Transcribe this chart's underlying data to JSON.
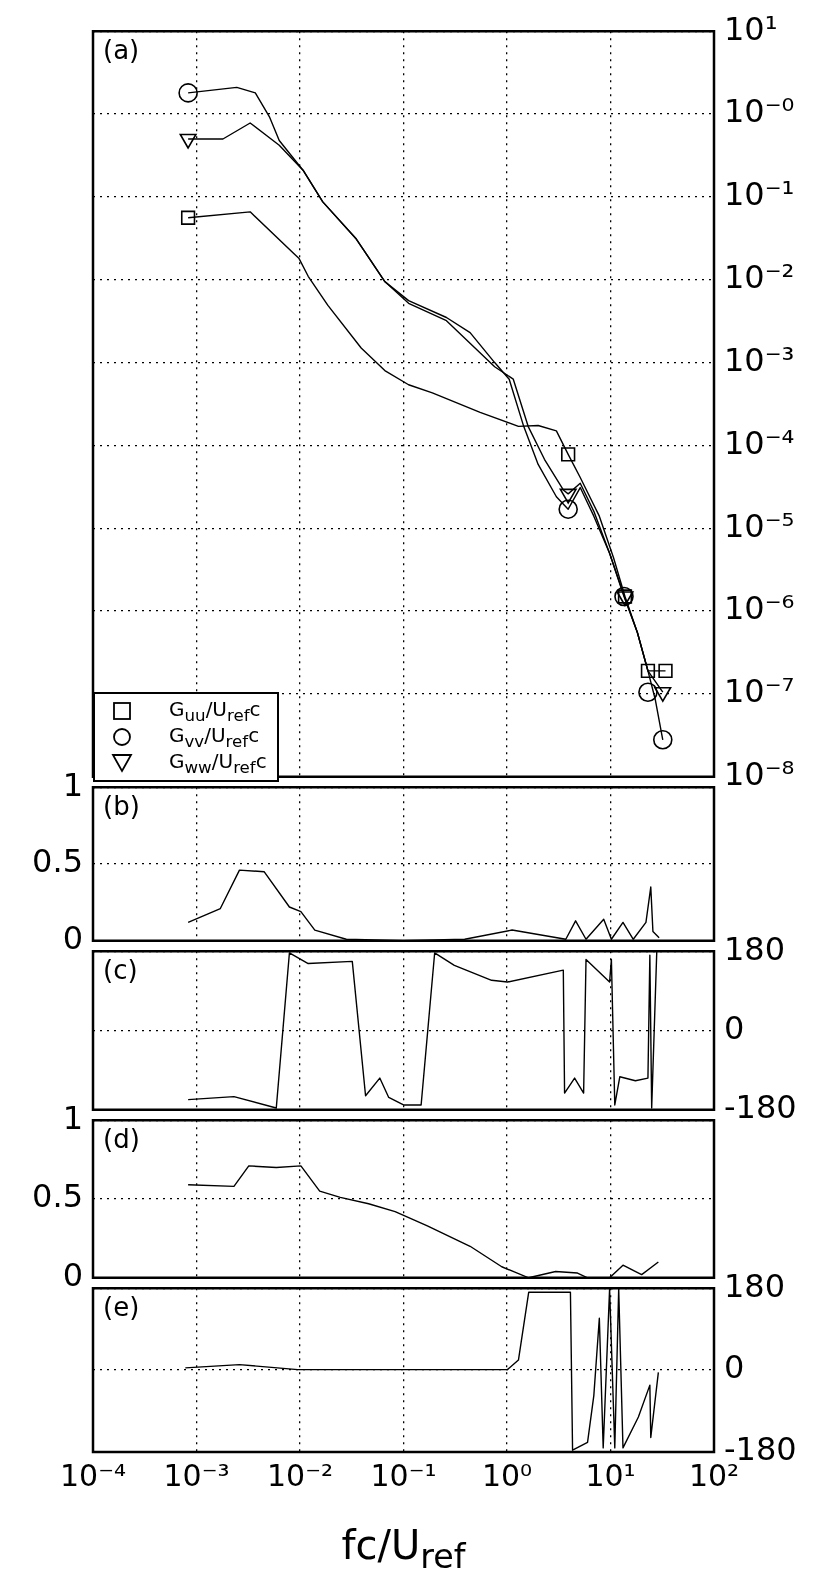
{
  "chart_data": [
    {
      "type": "line",
      "title": "(a)",
      "log": "xy",
      "grid": true,
      "legend": "bottom left",
      "tick_labels": "y",
      "xlim": [
        0.0001,
        100
      ],
      "xticks": [
        {
          "value": 0.0001,
          "label": null
        },
        {
          "value": 0.001,
          "label": null
        },
        {
          "value": 0.01,
          "label": null
        },
        {
          "value": 0.1,
          "label": null
        },
        {
          "value": 1,
          "label": null
        },
        {
          "value": 10,
          "label": null
        },
        {
          "value": 100,
          "label": null
        }
      ],
      "ylim": [
        1e-08,
        10
      ],
      "yticks": [
        {
          "value": 10,
          "label": "10¹"
        },
        {
          "value": 1,
          "label": "10⁻⁰"
        },
        {
          "value": 0.1,
          "label": "10⁻¹"
        },
        {
          "value": 0.01,
          "label": "10⁻²"
        },
        {
          "value": 0.001,
          "label": "10⁻³"
        },
        {
          "value": 0.0001,
          "label": "10⁻⁴"
        },
        {
          "value": 1e-05,
          "label": "10⁻⁵"
        },
        {
          "value": 1e-06,
          "label": "10⁻⁶"
        },
        {
          "value": 1e-07,
          "label": "10⁻⁷"
        },
        {
          "value": 1e-08,
          "label": "10⁻⁸"
        }
      ],
      "series": [
        {
          "color": "#000000",
          "x": [
            0.00083,
            0.0033,
            0.0098,
            0.012,
            0.0186,
            0.039,
            0.066,
            0.112,
            0.19,
            0.55,
            1.29,
            2.0,
            3.0,
            3.9,
            5.1,
            7.8,
            10.7,
            13.8,
            18.2,
            23,
            34
          ],
          "values": [
            0.056,
            0.066,
            0.018,
            0.011,
            0.0049,
            0.0015,
            0.0008,
            0.00054,
            0.00043,
            0.00025,
            0.00017,
            0.000174,
            0.00015,
            7.8e-05,
            4.1e-05,
            1.4e-05,
            4.4e-06,
            1.5e-06,
            5.5e-07,
            1.9e-07,
            1.9e-07
          ]
        },
        {
          "color": "#000000",
          "x": [
            0.00083,
            0.00245,
            0.0037,
            0.0051,
            0.0063,
            0.0107,
            0.0166,
            0.035,
            0.066,
            0.112,
            0.26,
            0.44,
            0.76,
            1.05,
            1.45,
            2.0,
            3.0,
            3.9,
            5.1,
            6.9,
            9.8,
            13.5,
            18.2,
            23,
            27,
            32
          ],
          "values": [
            1.8,
            2.1,
            1.8,
            0.91,
            0.48,
            0.21,
            0.087,
            0.031,
            0.0095,
            0.0056,
            0.0035,
            0.0023,
            0.001,
            0.00063,
            0.00017,
            5.9e-05,
            2.4e-05,
            1.7e-05,
            3.1e-05,
            1.4e-05,
            5e-06,
            1.55e-06,
            5.5e-07,
            1.9e-07,
            8.7e-08,
            2.8e-08
          ]
        },
        {
          "color": "#000000",
          "x": [
            0.00083,
            0.0018,
            0.0033,
            0.0063,
            0.0107,
            0.0166,
            0.035,
            0.066,
            0.112,
            0.26,
            0.76,
            1.15,
            1.6,
            2.3,
            3.5,
            3.9,
            5.1,
            6.9,
            9.8,
            13.5,
            18.2,
            23,
            32
          ],
          "values": [
            0.5,
            0.5,
            0.78,
            0.42,
            0.21,
            0.087,
            0.031,
            0.0095,
            0.0052,
            0.0032,
            0.00089,
            0.00063,
            0.00017,
            6.8e-05,
            2.9e-05,
            2.6e-05,
            3.5e-05,
            1.6e-05,
            5e-06,
            1.5e-06,
            5.5e-07,
            1.9e-07,
            1.05e-07
          ]
        },
        {
          "type": "scatter",
          "name": "G$_{uu}$/U$_{ref}$c",
          "color": "#000000",
          "marker": "square",
          "x": [
            0.00083,
            3.9,
            13.8,
            23,
            34
          ],
          "values": [
            0.056,
            7.8e-05,
            1.5e-06,
            1.9e-07,
            1.9e-07
          ]
        },
        {
          "type": "scatter",
          "name": "G$_{vv}$/U$_{ref}$c",
          "color": "#000000",
          "marker": "circle",
          "x": [
            0.00083,
            3.9,
            13.5,
            23,
            32
          ],
          "values": [
            1.8,
            1.7e-05,
            1.5e-06,
            1.05e-07,
            2.8e-08
          ]
        },
        {
          "type": "scatter",
          "name": "G$_{ww}$/U$_{ref}$c",
          "color": "#000000",
          "marker": "triangle",
          "x": [
            0.00083,
            3.9,
            13.8,
            32
          ],
          "values": [
            0.5,
            2.6e-05,
            1.5e-06,
            1.05e-07
          ]
        }
      ]
    },
    {
      "type": "line",
      "title": "(b)",
      "log": "x",
      "grid": true,
      "tick_labels": "y",
      "xlim": [
        0.0001,
        100
      ],
      "xticks": [
        {
          "value": 0.0001,
          "label": null
        },
        {
          "value": 0.001,
          "label": null
        },
        {
          "value": 0.01,
          "label": null
        },
        {
          "value": 0.1,
          "label": null
        },
        {
          "value": 1,
          "label": null
        },
        {
          "value": 10,
          "label": null
        },
        {
          "value": 100,
          "label": null
        }
      ],
      "ylim": [
        0,
        1
      ],
      "yticks": [
        0,
        0.5,
        1
      ],
      "series": [
        {
          "color": "#000000",
          "x": [
            0.00083,
            0.0017,
            0.0026,
            0.0045,
            0.0079,
            0.0102,
            0.0139,
            0.028,
            0.1,
            0.39,
            1.12,
            3.7,
            4.6,
            5.8,
            8.6,
            10.2,
            13.2,
            16.6,
            22,
            24.5,
            25.7,
            29.5
          ],
          "values": [
            0.12,
            0.21,
            0.46,
            0.45,
            0.22,
            0.19,
            0.07,
            0.01,
            0,
            0.01,
            0.07,
            0.01,
            0.13,
            0.01,
            0.14,
            0.01,
            0.12,
            0.01,
            0.12,
            0.35,
            0.06,
            0.02
          ]
        }
      ]
    },
    {
      "type": "line",
      "title": "(c)",
      "log": "x",
      "grid": true,
      "tick_labels": "y",
      "xlim": [
        0.0001,
        100
      ],
      "xticks": [
        {
          "value": 0.0001,
          "label": null
        },
        {
          "value": 0.001,
          "label": null
        },
        {
          "value": 0.01,
          "label": null
        },
        {
          "value": 0.1,
          "label": null
        },
        {
          "value": 1,
          "label": null
        },
        {
          "value": 10,
          "label": null
        },
        {
          "value": 100,
          "label": null
        }
      ],
      "ylim": [
        -180,
        180
      ],
      "yticks": [
        -180,
        0,
        180
      ],
      "series": [
        {
          "color": "#000000",
          "x": [
            0.00083,
            0.0023,
            0.0059,
            0.0079,
            0.012,
            0.032,
            0.043,
            0.059,
            0.072,
            0.1,
            0.148,
            0.2,
            0.31,
            0.71,
            1.01,
            3.5,
            3.6,
            4.5,
            5.5,
            5.8,
            9.8,
            10.2,
            11.0,
            12.3,
            17.4,
            23,
            24,
            25,
            28
          ],
          "values": [
            -157,
            -150,
            -176,
            176,
            152,
            157,
            -148,
            -108,
            -152,
            -169,
            -169,
            176,
            148,
            114,
            110,
            137,
            -142,
            -108,
            -142,
            161,
            110,
            161,
            -169,
            -105,
            -114,
            -108,
            171,
            -176,
            180
          ]
        }
      ]
    },
    {
      "type": "line",
      "title": "(d)",
      "log": "x",
      "grid": true,
      "tick_labels": "y",
      "xlim": [
        0.0001,
        100
      ],
      "xticks": [
        {
          "value": 0.0001,
          "label": null
        },
        {
          "value": 0.001,
          "label": null
        },
        {
          "value": 0.01,
          "label": null
        },
        {
          "value": 0.1,
          "label": null
        },
        {
          "value": 1,
          "label": null
        },
        {
          "value": 10,
          "label": null
        },
        {
          "value": 100,
          "label": null
        }
      ],
      "ylim": [
        0,
        1
      ],
      "yticks": [
        0,
        0.5,
        1
      ],
      "series": [
        {
          "color": "#000000",
          "x": [
            0.00083,
            0.0023,
            0.0032,
            0.0059,
            0.0102,
            0.0155,
            0.0245,
            0.046,
            0.083,
            0.17,
            0.44,
            0.89,
            1.62,
            2.95,
            4.8,
            6.0,
            9.8,
            13.2,
            20,
            29
          ],
          "values": [
            0.59,
            0.58,
            0.71,
            0.7,
            0.71,
            0.55,
            0.51,
            0.47,
            0.42,
            0.33,
            0.2,
            0.07,
            0,
            0.04,
            0.03,
            0,
            0,
            0.08,
            0.02,
            0.1
          ]
        }
      ]
    },
    {
      "type": "line",
      "title": "(e)",
      "log": "x",
      "grid": true,
      "xlabel": "fc/U$_{ref}$",
      "xlim": [
        0.0001,
        100
      ],
      "xticks": [
        {
          "value": 0.0001,
          "label": "10⁻⁴"
        },
        {
          "value": 0.001,
          "label": "10⁻³"
        },
        {
          "value": 0.01,
          "label": "10⁻²"
        },
        {
          "value": 0.1,
          "label": "10⁻¹"
        },
        {
          "value": 1,
          "label": "10⁰"
        },
        {
          "value": 10,
          "label": "10¹"
        },
        {
          "value": 100,
          "label": "10²"
        }
      ],
      "ylim": [
        -180,
        180
      ],
      "yticks": [
        -180,
        0,
        180
      ],
      "series": [
        {
          "color": "#000000",
          "x": [
            0.00078,
            0.0026,
            0.0095,
            1.01,
            1.29,
            1.62,
            3.7,
            4.1,
            4.3,
            6.0,
            6.9,
            7.8,
            8.5,
            9.8,
            11.0,
            12.0,
            13.2,
            18.6,
            24,
            24.5,
            29
          ],
          "values": [
            5,
            12,
            1,
            1,
            22,
            171,
            171,
            171,
            -176,
            -159,
            -56,
            114,
            -171,
            178,
            -171,
            178,
            -171,
            -103,
            -33,
            -148,
            -5
          ]
        }
      ]
    }
  ]
}
